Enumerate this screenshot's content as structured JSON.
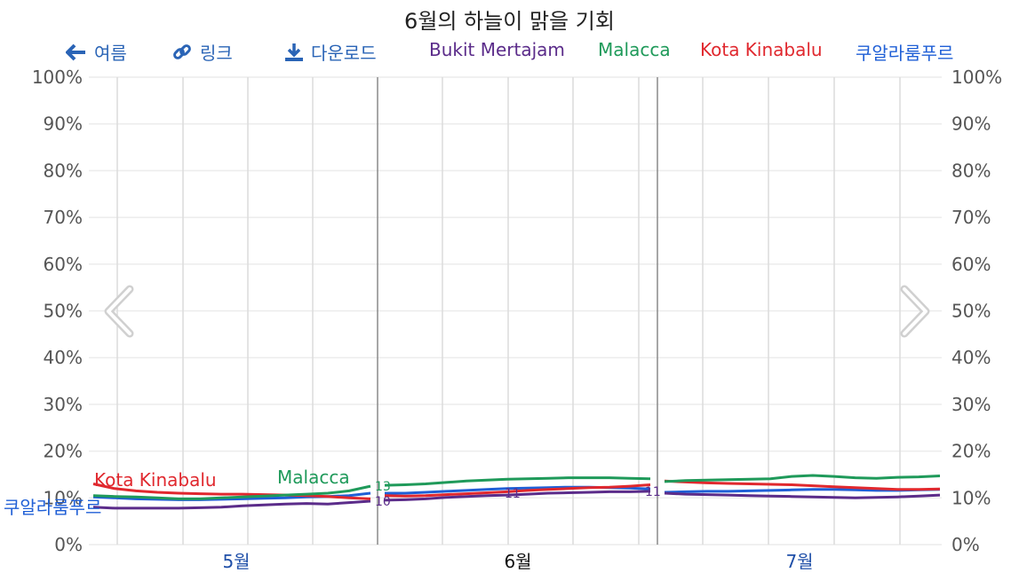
{
  "title": "6월의 하늘이 맑을 기회",
  "toolbar": {
    "back_label": "여름",
    "link_label": "링크",
    "download_label": "다운로드"
  },
  "icons": {
    "back": "arrow-left-icon",
    "link": "link-icon",
    "download": "download-icon",
    "prev": "chevron-left-icon",
    "next": "chevron-right-icon"
  },
  "legend": [
    {
      "name": "Bukit Mertajam",
      "color": "#5b2c8a"
    },
    {
      "name": "Malacca",
      "color": "#1f9a5a"
    },
    {
      "name": "Kota Kinabalu",
      "color": "#e0282e"
    },
    {
      "name": "쿠알라룸푸르",
      "color": "#1f5fd6"
    }
  ],
  "chart_data": {
    "type": "line",
    "title": "6월의 하늘이 맑을 기회",
    "ylim": [
      0,
      100
    ],
    "yticks": [
      "0%",
      "10%",
      "20%",
      "30%",
      "40%",
      "50%",
      "60%",
      "70%",
      "80%",
      "90%",
      "100%"
    ],
    "xtick_labels": [
      "5월",
      "6월",
      "7월"
    ],
    "grid": true,
    "panels": [
      {
        "month": "5월",
        "series": [
          {
            "name": "Bukit Mertajam",
            "values": [
              8,
              7.8,
              7.8,
              7.8,
              7.8,
              7.9,
              8,
              8.3,
              8.5,
              8.7,
              8.8,
              8.7,
              9,
              9.3
            ]
          },
          {
            "name": "Malacca",
            "values": [
              10.5,
              10.3,
              10.2,
              10,
              9.8,
              9.8,
              10,
              10.2,
              10.4,
              10.6,
              10.8,
              11,
              11.5,
              12.5
            ]
          },
          {
            "name": "Kota Kinabalu",
            "values": [
              13,
              12,
              11.5,
              11.2,
              11,
              10.9,
              10.8,
              10.8,
              10.7,
              10.6,
              10.5,
              10.3,
              10,
              9.8
            ]
          },
          {
            "name": "쿠알라룸푸르",
            "values": [
              10.2,
              10,
              9.8,
              9.7,
              9.6,
              9.6,
              9.7,
              9.8,
              9.9,
              10,
              10.2,
              10.3,
              10.5,
              11
            ]
          }
        ]
      },
      {
        "month": "6월",
        "series": [
          {
            "name": "Bukit Mertajam",
            "values": [
              9.5,
              9.6,
              9.8,
              10.1,
              10.3,
              10.5,
              10.6,
              10.8,
              11,
              11.1,
              11.2,
              11.3,
              11.3,
              11.4
            ]
          },
          {
            "name": "Malacca",
            "values": [
              12.7,
              12.8,
              13,
              13.3,
              13.6,
              13.8,
              14,
              14.1,
              14.2,
              14.3,
              14.3,
              14.3,
              14.2,
              14.1
            ]
          },
          {
            "name": "Kota Kinabalu",
            "values": [
              10.5,
              10.4,
              10.5,
              10.7,
              10.9,
              11.1,
              11.3,
              11.6,
              11.8,
              12,
              12.2,
              12.3,
              12.5,
              12.8
            ]
          },
          {
            "name": "쿠알라룸푸르",
            "values": [
              11,
              11,
              11.2,
              11.4,
              11.6,
              11.8,
              12,
              12.1,
              12.2,
              12.3,
              12.3,
              12.2,
              12.1,
              11.9
            ]
          }
        ]
      },
      {
        "month": "7월",
        "series": [
          {
            "name": "Bukit Mertajam",
            "values": [
              11,
              10.8,
              10.7,
              10.6,
              10.5,
              10.4,
              10.3,
              10.2,
              10.1,
              10,
              10.1,
              10.2,
              10.4,
              10.6
            ]
          },
          {
            "name": "Malacca",
            "values": [
              13.5,
              13.7,
              13.8,
              13.9,
              14,
              14.1,
              14.6,
              14.8,
              14.6,
              14.3,
              14.2,
              14.4,
              14.5,
              14.7
            ]
          },
          {
            "name": "Kota Kinabalu",
            "values": [
              13.6,
              13.4,
              13.2,
              13.1,
              13,
              12.9,
              12.8,
              12.6,
              12.4,
              12.2,
              12,
              11.8,
              11.8,
              11.9
            ]
          },
          {
            "name": "쿠알라룸푸르",
            "values": [
              11.2,
              11.3,
              11.4,
              11.4,
              11.5,
              11.6,
              11.7,
              11.8,
              11.8,
              11.7,
              11.6,
              11.6,
              11.7,
              11.8
            ]
          }
        ]
      }
    ],
    "series_labels": [
      {
        "text": "Kota Kinabalu",
        "series": "Kota Kinabalu"
      },
      {
        "text": "Malacca",
        "series": "Malacca"
      },
      {
        "text": "쿠알라룸푸르",
        "series": "쿠알라룸푸르"
      }
    ],
    "annotations": [
      {
        "text": "13",
        "series": "Malacca"
      },
      {
        "text": "10",
        "series": "Bukit Mertajam"
      },
      {
        "text": "11",
        "series": "Bukit Mertajam"
      },
      {
        "text": "11",
        "series": "Bukit Mertajam"
      }
    ]
  }
}
